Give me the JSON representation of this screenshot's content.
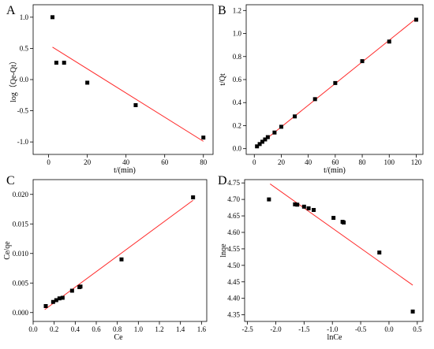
{
  "chart_data": [
    {
      "panel": "A",
      "type": "scatter",
      "xlabel": "t/(min)",
      "ylabel": "log（Qe-Qt）",
      "xlim": [
        -8,
        85
      ],
      "ylim": [
        -1.2,
        1.2
      ],
      "xticks": [
        0,
        20,
        40,
        60,
        80
      ],
      "yticks": [
        -1.0,
        -0.5,
        0.0,
        0.5,
        1.0
      ],
      "tick_format": {
        "x": 0,
        "y": 1
      },
      "points": [
        [
          2,
          1.0
        ],
        [
          4,
          0.27
        ],
        [
          8,
          0.27
        ],
        [
          20,
          -0.05
        ],
        [
          45,
          -0.41
        ],
        [
          80,
          -0.93
        ]
      ],
      "fit_line": [
        [
          2,
          0.52
        ],
        [
          80,
          -0.99
        ]
      ]
    },
    {
      "panel": "B",
      "type": "scatter",
      "xlabel": "t/(min)",
      "ylabel": "t/Qt",
      "xlim": [
        -6,
        125
      ],
      "ylim": [
        -0.05,
        1.25
      ],
      "xticks": [
        0,
        20,
        40,
        60,
        80,
        100,
        120
      ],
      "yticks": [
        0.0,
        0.2,
        0.4,
        0.6,
        0.8,
        1.0,
        1.2
      ],
      "tick_format": {
        "x": 0,
        "y": 1
      },
      "points": [
        [
          2,
          0.02
        ],
        [
          4,
          0.04
        ],
        [
          6,
          0.06
        ],
        [
          8,
          0.08
        ],
        [
          10,
          0.1
        ],
        [
          15,
          0.14
        ],
        [
          20,
          0.19
        ],
        [
          30,
          0.28
        ],
        [
          45,
          0.43
        ],
        [
          60,
          0.57
        ],
        [
          80,
          0.76
        ],
        [
          100,
          0.93
        ],
        [
          120,
          1.12
        ]
      ],
      "fit_line": [
        [
          1,
          0.01
        ],
        [
          120,
          1.13
        ]
      ]
    },
    {
      "panel": "C",
      "type": "scatter",
      "xlabel": "Ce",
      "ylabel": "Ce/qe",
      "xlim": [
        0.0,
        1.65
      ],
      "ylim": [
        -0.0015,
        0.0225
      ],
      "xticks": [
        0.0,
        0.2,
        0.4,
        0.6,
        0.8,
        1.0,
        1.2,
        1.4,
        1.6
      ],
      "yticks": [
        0.0,
        0.005,
        0.01,
        0.015,
        0.02
      ],
      "tick_format": {
        "x": 1,
        "y": 3
      },
      "points": [
        [
          0.12,
          0.0011
        ],
        [
          0.19,
          0.0018
        ],
        [
          0.22,
          0.0021
        ],
        [
          0.25,
          0.0024
        ],
        [
          0.28,
          0.0025
        ],
        [
          0.37,
          0.0037
        ],
        [
          0.44,
          0.0043
        ],
        [
          0.45,
          0.0044
        ],
        [
          0.84,
          0.009
        ],
        [
          1.52,
          0.0195
        ]
      ],
      "fit_line": [
        [
          0.11,
          0.0005
        ],
        [
          1.52,
          0.019
        ]
      ]
    },
    {
      "panel": "D",
      "type": "scatter",
      "xlabel": "lnCe",
      "ylabel": "lnqe",
      "xlim": [
        -2.55,
        0.6
      ],
      "ylim": [
        4.33,
        4.76
      ],
      "xticks": [
        -2.5,
        -2.0,
        -1.5,
        -1.0,
        -0.5,
        0.0,
        0.5
      ],
      "yticks": [
        4.35,
        4.4,
        4.45,
        4.5,
        4.55,
        4.6,
        4.65,
        4.7,
        4.75
      ],
      "tick_format": {
        "x": 1,
        "y": 2
      },
      "points": [
        [
          -2.12,
          4.7
        ],
        [
          -1.66,
          4.685
        ],
        [
          -1.62,
          4.684
        ],
        [
          -1.5,
          4.678
        ],
        [
          -1.42,
          4.673
        ],
        [
          -1.33,
          4.668
        ],
        [
          -0.98,
          4.644
        ],
        [
          -0.82,
          4.632
        ],
        [
          -0.8,
          4.63
        ],
        [
          -0.17,
          4.539
        ],
        [
          0.42,
          4.36
        ]
      ],
      "fit_line": [
        [
          -2.1,
          4.747
        ],
        [
          0.42,
          4.44
        ]
      ]
    }
  ],
  "colors": {
    "points": "#000000",
    "fit_line": "#ff2a2a",
    "axes": "#000000"
  }
}
